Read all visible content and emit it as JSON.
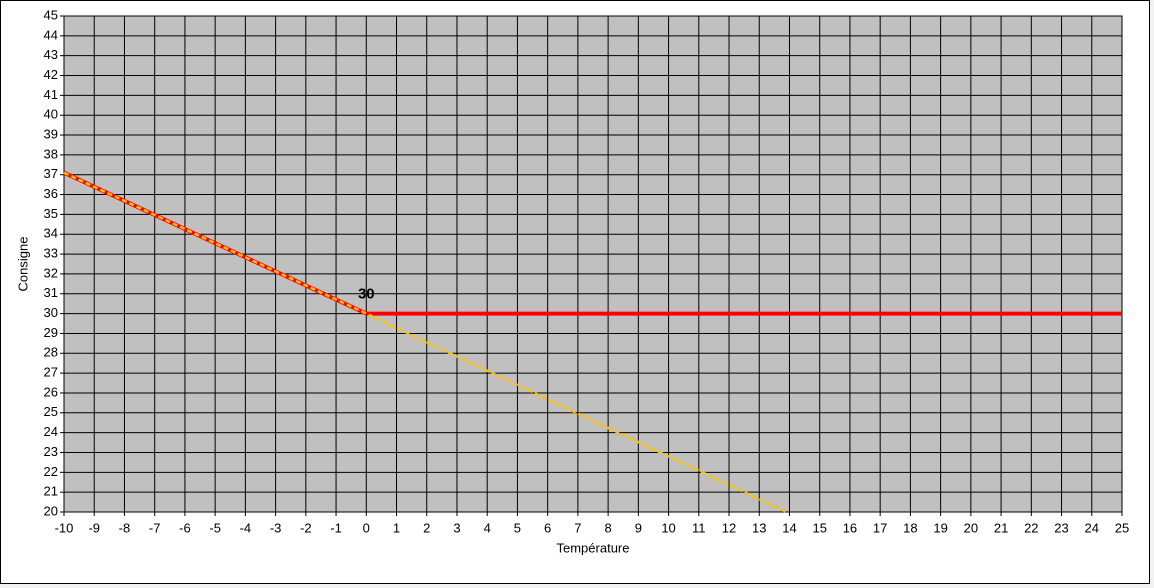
{
  "chart_data": {
    "type": "line",
    "x_label": "Température",
    "y_label": "Consigne",
    "xlim": [
      -10,
      25
    ],
    "ylim": [
      20,
      45
    ],
    "xticks": [
      -10,
      -9,
      -8,
      -7,
      -6,
      -5,
      -4,
      -3,
      -2,
      -1,
      0,
      1,
      2,
      3,
      4,
      5,
      6,
      7,
      8,
      9,
      10,
      11,
      12,
      13,
      14,
      15,
      16,
      17,
      18,
      19,
      20,
      21,
      22,
      23,
      24,
      25
    ],
    "yticks": [
      20,
      21,
      22,
      23,
      24,
      25,
      26,
      27,
      28,
      29,
      30,
      31,
      32,
      33,
      34,
      35,
      36,
      37,
      38,
      39,
      40,
      41,
      42,
      43,
      44,
      45
    ],
    "grid": true,
    "plot_background": "#c0c0c0",
    "series": [
      {
        "color": "#ff0000",
        "style": "solid",
        "x": [
          -10,
          0,
          25
        ],
        "values": [
          37.1,
          30,
          30
        ],
        "data_label_index": 1
      },
      {
        "color": "#ffc000",
        "style": "dashed",
        "x": [
          -10,
          0,
          13.9
        ],
        "values": [
          37.1,
          30,
          20
        ]
      }
    ]
  }
}
